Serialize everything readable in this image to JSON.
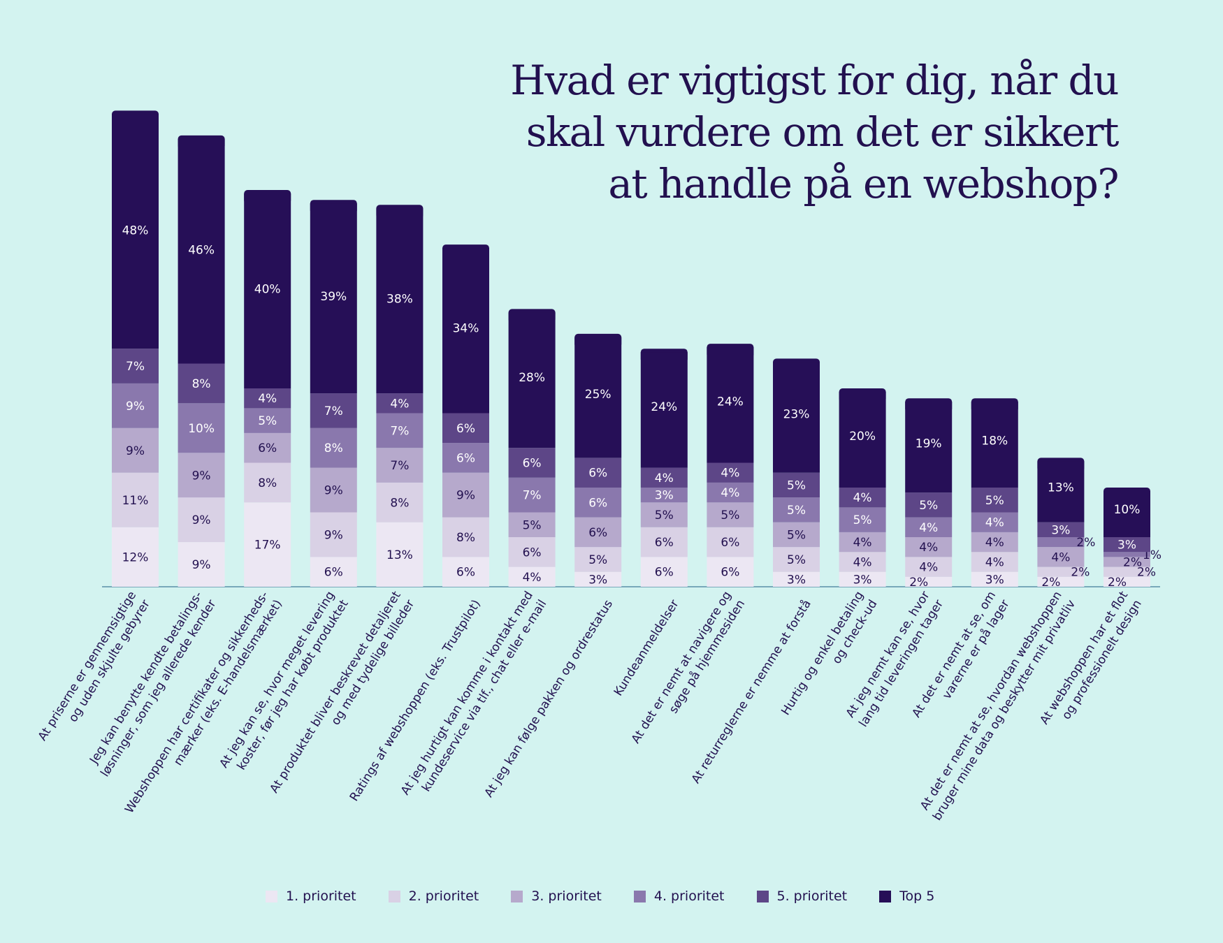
{
  "title_lines": [
    "Hvad er vigtigst for dig, når du",
    "skal vurdere om det er sikkert",
    "at handle på en webshop?"
  ],
  "colors": {
    "background": "#d3f3f0",
    "text_dark": "#22104f",
    "text_light": "#ffffff",
    "axis": "#5a8fa8",
    "series": [
      "#ece7f3",
      "#d9d1e5",
      "#b6a9cc",
      "#8a78ad",
      "#5d4687",
      "#260f57"
    ]
  },
  "chart_data": {
    "type": "bar",
    "stacked": true,
    "title": "Hvad er vigtigst for dig, når du skal vurdere om det er sikkert at handle på en webshop?",
    "ylim": [
      0,
      100
    ],
    "categories": [
      [
        "At priserne er gennemsigtige",
        "og uden skjulte gebyrer"
      ],
      [
        "Jeg kan benytte kendte betalings-",
        "løsninger, som jeg allerede kender"
      ],
      [
        "Webshoppen har certifikater og sikkerheds-",
        "mærker (eks. E-handelsmærket)"
      ],
      [
        "At jeg kan se, hvor meget levering",
        "koster, før jeg har købt produktet"
      ],
      [
        "At produktet bliver beskrevet detaljeret",
        "og med tydelige billeder"
      ],
      [
        "Ratings af webshoppen (eks. Trustpilot)"
      ],
      [
        "At jeg hurtigt kan komme i kontakt med",
        "kundeservice via tlf., chat eller e-mail"
      ],
      [
        "At jeg kan følge pakken og ordrestatus"
      ],
      [
        "Kundeanmeldelser"
      ],
      [
        "At det er nemt at navigere og",
        "søge på hjemmesiden"
      ],
      [
        "At returreglerne er nemme at forstå"
      ],
      [
        "Hurtig og enkel betaling",
        "og check-ud"
      ],
      [
        "At jeg nemt kan se, hvor",
        "lang tid leveringen tager"
      ],
      [
        "At det er nemt at se, om",
        "varerne er på lager"
      ],
      [
        "At det er nemt at se, hvordan webshoppen",
        "bruger mine data og beskytter mit privatliv"
      ],
      [
        "At webshoppen har et flot",
        "og professionelt design"
      ]
    ],
    "series": [
      {
        "name": "1. prioritet",
        "values": [
          12,
          9,
          17,
          6,
          13,
          6,
          4,
          3,
          6,
          6,
          3,
          3,
          2,
          3,
          2,
          2
        ]
      },
      {
        "name": "2. prioritet",
        "values": [
          11,
          9,
          8,
          9,
          8,
          8,
          6,
          5,
          6,
          6,
          5,
          4,
          4,
          4,
          2,
          2
        ]
      },
      {
        "name": "3. prioritet",
        "values": [
          9,
          9,
          6,
          9,
          7,
          9,
          5,
          6,
          5,
          5,
          5,
          4,
          4,
          4,
          4,
          2
        ]
      },
      {
        "name": "4. prioritet",
        "values": [
          9,
          10,
          5,
          8,
          7,
          6,
          7,
          6,
          3,
          4,
          5,
          5,
          4,
          4,
          2,
          1
        ]
      },
      {
        "name": "5. prioritet",
        "values": [
          7,
          8,
          4,
          7,
          4,
          6,
          6,
          6,
          4,
          4,
          5,
          4,
          5,
          5,
          3,
          3
        ]
      },
      {
        "name": "Top 5",
        "values": [
          48,
          46,
          40,
          39,
          38,
          34,
          28,
          25,
          24,
          24,
          23,
          20,
          19,
          18,
          13,
          10
        ]
      }
    ]
  }
}
